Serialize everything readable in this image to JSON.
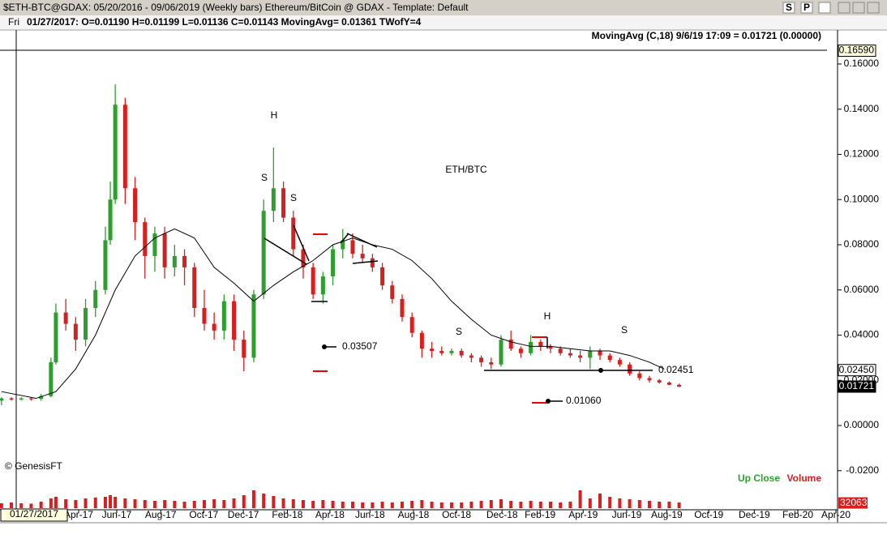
{
  "window": {
    "title": "$ETH-BTC@GDAX:  05/20/2016 - 09/06/2019  (Weekly bars)   Ethereum/BitCoin @ GDAX   -   Template: Default",
    "buttons": [
      "S",
      "P"
    ],
    "day": "Fri",
    "info": "01/27/2017:  O=0.01190  H=0.01199  L=0.01136  C=0.01143  MovingAvg= 0.01361  TWofY=4",
    "ma_label": "MovingAvg (C,18)   9/6/19 17:09 = 0.01721 (0.00000)",
    "cursor_date": "01/27/2017",
    "copyright": "© GenesisFT",
    "legend": [
      "Up Close",
      "Volume"
    ]
  },
  "chart_data": {
    "type": "candlestick",
    "up_color": "#2e9e2e",
    "down_color": "#d62020",
    "xlim": [
      -3.3,
      165.7
    ],
    "ylim": [
      -0.0287,
      0.1747
    ],
    "xticks": [
      {
        "value": 12.6,
        "label": "Apr-17"
      },
      {
        "value": 20.3,
        "label": "Jun-17"
      },
      {
        "value": 29.2,
        "label": "Aug-17"
      },
      {
        "value": 37.9,
        "label": "Oct-17"
      },
      {
        "value": 45.9,
        "label": "Dec-17"
      },
      {
        "value": 54.8,
        "label": "Feb-18"
      },
      {
        "value": 63.4,
        "label": "Apr-18"
      },
      {
        "value": 71.5,
        "label": "Jun-18"
      },
      {
        "value": 80.3,
        "label": "Aug-18"
      },
      {
        "value": 89,
        "label": "Oct-18"
      },
      {
        "value": 98.2,
        "label": "Dec-18"
      },
      {
        "value": 105.9,
        "label": "Feb-19"
      },
      {
        "value": 114.6,
        "label": "Apr-19"
      },
      {
        "value": 123.4,
        "label": "Jun-19"
      },
      {
        "value": 131.5,
        "label": "Aug-19"
      },
      {
        "value": 140,
        "label": "Oct-19"
      },
      {
        "value": 149.2,
        "label": "Dec-19"
      },
      {
        "value": 158,
        "label": "Feb-20"
      },
      {
        "value": 165.7,
        "label": "Apr-20"
      }
    ],
    "yticks": [
      {
        "value": 0.16,
        "label": "0.16000"
      },
      {
        "value": 0.14,
        "label": "0.14000"
      },
      {
        "value": 0.12,
        "label": "0.12000"
      },
      {
        "value": 0.1,
        "label": "0.10000"
      },
      {
        "value": 0.08,
        "label": "0.08000"
      },
      {
        "value": 0.06,
        "label": "0.06000"
      },
      {
        "value": 0.04,
        "label": "0.04000"
      },
      {
        "value": 0.02,
        "label": "0.02000"
      },
      {
        "value": 0,
        "label": "0.00000"
      },
      {
        "value": -0.02,
        "label": "-0.0200"
      }
    ],
    "price_markers": [
      {
        "value": 0.1659,
        "label": "0.16590"
      },
      {
        "value": 0.0245,
        "label": "0.02450"
      },
      {
        "value": 0.01721,
        "label": "0.01721"
      }
    ],
    "x": [
      -3,
      -1,
      1,
      3,
      5,
      7,
      8,
      10,
      12,
      14,
      16,
      18,
      19,
      20,
      22,
      24,
      26,
      28,
      30,
      32,
      34,
      36,
      38,
      40,
      42,
      44,
      46,
      48,
      50,
      52,
      54,
      56,
      58,
      60,
      62,
      64,
      66,
      68,
      70,
      72,
      74,
      76,
      78,
      80,
      82,
      84,
      86,
      88,
      90,
      92,
      94,
      96,
      98,
      100,
      102,
      104,
      106,
      108,
      110,
      112,
      114,
      116,
      118,
      120,
      122,
      124,
      126,
      128,
      130,
      132,
      134
    ],
    "open": [
      0.011,
      0.012,
      0.0115,
      0.012,
      0.0118,
      0.013,
      0.028,
      0.05,
      0.045,
      0.038,
      0.052,
      0.06,
      0.082,
      0.1,
      0.142,
      0.105,
      0.09,
      0.075,
      0.085,
      0.07,
      0.075,
      0.07,
      0.052,
      0.045,
      0.042,
      0.055,
      0.038,
      0.03,
      0.058,
      0.095,
      0.105,
      0.092,
      0.078,
      0.07,
      0.058,
      0.066,
      0.078,
      0.082,
      0.076,
      0.074,
      0.07,
      0.062,
      0.056,
      0.048,
      0.041,
      0.034,
      0.033,
      0.032,
      0.033,
      0.031,
      0.03,
      0.028,
      0.027,
      0.038,
      0.034,
      0.032,
      0.037,
      0.035,
      0.034,
      0.032,
      0.031,
      0.03,
      0.033,
      0.031,
      0.029,
      0.027,
      0.023,
      0.021,
      0.02,
      0.019,
      0.018
    ],
    "high": [
      0.0125,
      0.0125,
      0.0125,
      0.0125,
      0.014,
      0.03,
      0.054,
      0.056,
      0.048,
      0.056,
      0.064,
      0.088,
      0.108,
      0.151,
      0.145,
      0.11,
      0.092,
      0.088,
      0.088,
      0.08,
      0.078,
      0.072,
      0.06,
      0.05,
      0.058,
      0.058,
      0.042,
      0.06,
      0.1,
      0.123,
      0.108,
      0.095,
      0.08,
      0.072,
      0.068,
      0.08,
      0.087,
      0.085,
      0.08,
      0.076,
      0.072,
      0.064,
      0.058,
      0.05,
      0.042,
      0.037,
      0.035,
      0.034,
      0.034,
      0.032,
      0.031,
      0.03,
      0.04,
      0.042,
      0.035,
      0.04,
      0.038,
      0.036,
      0.035,
      0.034,
      0.033,
      0.035,
      0.034,
      0.032,
      0.03,
      0.028,
      0.024,
      0.022,
      0.0205,
      0.0195,
      0.0185
    ],
    "low": [
      0.009,
      0.011,
      0.011,
      0.011,
      0.011,
      0.0125,
      0.027,
      0.042,
      0.033,
      0.035,
      0.048,
      0.058,
      0.08,
      0.098,
      0.098,
      0.082,
      0.065,
      0.068,
      0.065,
      0.066,
      0.062,
      0.048,
      0.042,
      0.038,
      0.038,
      0.033,
      0.024,
      0.028,
      0.056,
      0.09,
      0.09,
      0.075,
      0.065,
      0.056,
      0.054,
      0.062,
      0.074,
      0.074,
      0.072,
      0.068,
      0.06,
      0.054,
      0.046,
      0.039,
      0.03,
      0.03,
      0.031,
      0.031,
      0.03,
      0.028,
      0.026,
      0.025,
      0.026,
      0.033,
      0.03,
      0.031,
      0.033,
      0.032,
      0.031,
      0.03,
      0.028,
      0.025,
      0.029,
      0.028,
      0.026,
      0.022,
      0.02,
      0.019,
      0.0185,
      0.0178,
      0.017
    ],
    "close": [
      0.012,
      0.0115,
      0.012,
      0.0118,
      0.013,
      0.028,
      0.05,
      0.045,
      0.038,
      0.052,
      0.06,
      0.082,
      0.1,
      0.142,
      0.105,
      0.09,
      0.075,
      0.085,
      0.07,
      0.075,
      0.07,
      0.052,
      0.045,
      0.042,
      0.055,
      0.038,
      0.03,
      0.058,
      0.095,
      0.105,
      0.092,
      0.078,
      0.07,
      0.058,
      0.066,
      0.078,
      0.082,
      0.076,
      0.074,
      0.07,
      0.062,
      0.056,
      0.048,
      0.041,
      0.034,
      0.033,
      0.032,
      0.033,
      0.031,
      0.03,
      0.028,
      0.027,
      0.038,
      0.034,
      0.032,
      0.037,
      0.035,
      0.034,
      0.032,
      0.031,
      0.03,
      0.033,
      0.031,
      0.029,
      0.027,
      0.023,
      0.021,
      0.02,
      0.019,
      0.018,
      0.01721
    ],
    "volume": {
      "color": "#d62020",
      "ylim": [
        0,
        200000
      ],
      "values": [
        30000,
        35000,
        30000,
        28000,
        40000,
        60000,
        70000,
        55000,
        50000,
        60000,
        65000,
        70000,
        80000,
        70000,
        60000,
        55000,
        50000,
        45000,
        50000,
        45000,
        40000,
        45000,
        50000,
        55000,
        50000,
        60000,
        80000,
        110000,
        90000,
        75000,
        60000,
        55000,
        50000,
        45000,
        50000,
        45000,
        40000,
        40000,
        35000,
        35000,
        40000,
        35000,
        40000,
        45000,
        50000,
        40000,
        35000,
        35000,
        35000,
        40000,
        45000,
        50000,
        55000,
        45000,
        40000,
        45000,
        40000,
        40000,
        35000,
        40000,
        110000,
        60000,
        90000,
        70000,
        60000,
        55000,
        50000,
        45000,
        40000,
        40000,
        35000
      ]
    },
    "last_volume": 32063,
    "moving_average": {
      "name": "MovingAvg",
      "color": "#000000",
      "x": [
        -3,
        4,
        8,
        12,
        16,
        20,
        24,
        28,
        32,
        36,
        40,
        44,
        48,
        52,
        56,
        60,
        64,
        68,
        72,
        76,
        80,
        84,
        88,
        92,
        96,
        100,
        104,
        108,
        112,
        116,
        120,
        124,
        128,
        131
      ],
      "values": [
        0.015,
        0.012,
        0.015,
        0.025,
        0.04,
        0.06,
        0.075,
        0.083,
        0.087,
        0.083,
        0.07,
        0.063,
        0.055,
        0.062,
        0.068,
        0.073,
        0.08,
        0.083,
        0.08,
        0.078,
        0.073,
        0.065,
        0.055,
        0.047,
        0.04,
        0.037,
        0.035,
        0.035,
        0.034,
        0.033,
        0.033,
        0.031,
        0.028,
        0.025
      ]
    },
    "annotations": [
      "H",
      "S",
      "S",
      "ETH/BTC",
      "0.03507",
      "S",
      "H",
      "S",
      "0.02451",
      "0.01060"
    ]
  }
}
